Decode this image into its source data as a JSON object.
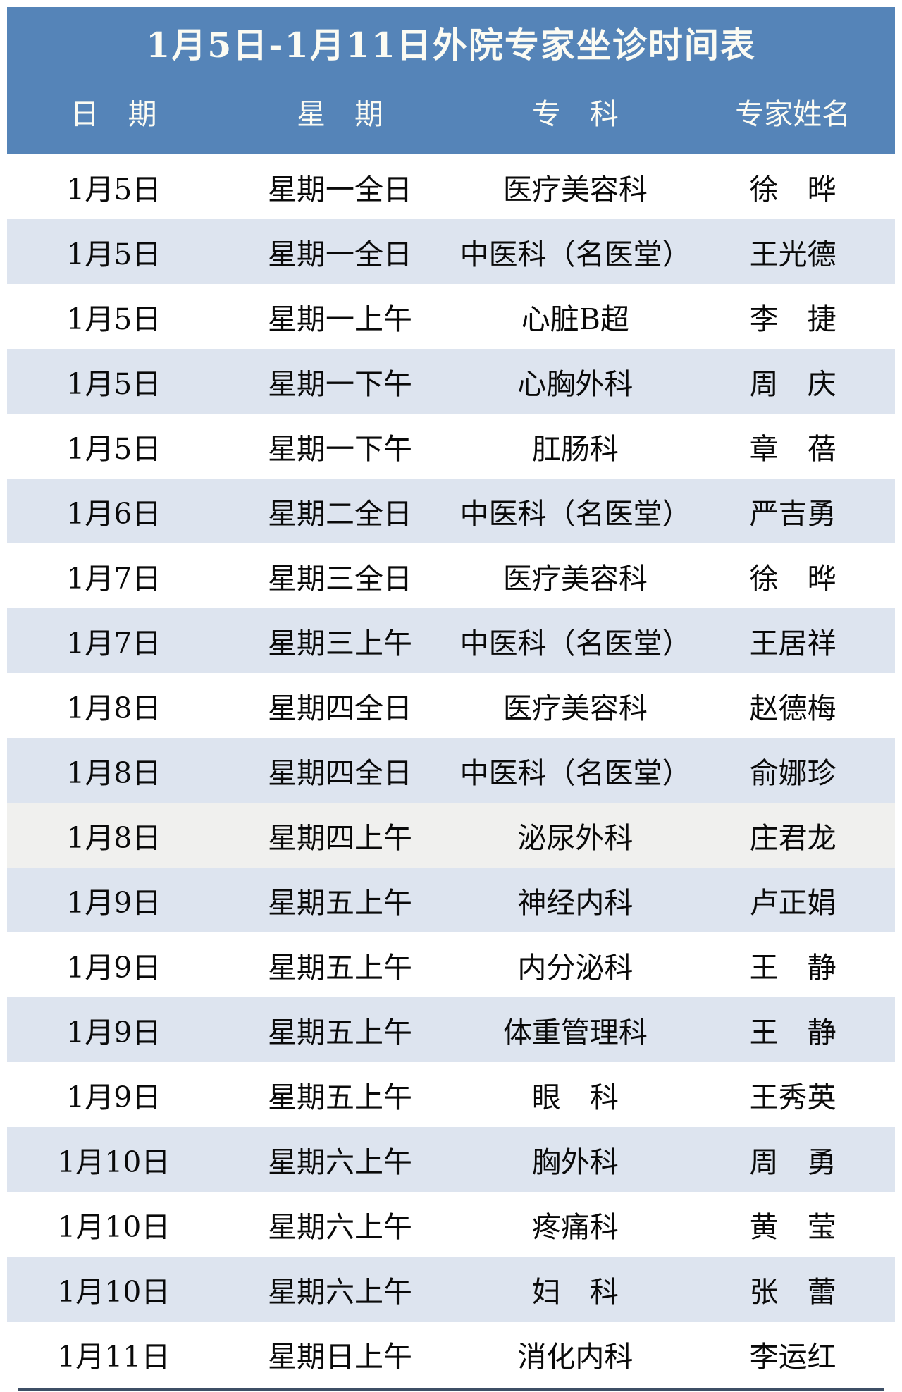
{
  "title": "1月5日-1月11日外院专家坐诊时间表",
  "columns": [
    "日　期",
    "星　期",
    "专　科",
    "专家姓名"
  ],
  "colors": {
    "header_bg": "#5584b8",
    "header_text": "#fbfbf3",
    "row_white": "#ffffff",
    "row_blue": "#dde4ef",
    "row_gray": "#f0f0ee",
    "cell_text": "#0a0a0a",
    "bottom_rule": "#3d4f66"
  },
  "rows": [
    {
      "date": "1月5日",
      "weekday": "星期一全日",
      "department": "医疗美容科",
      "expert": "徐　晔",
      "shade": "white"
    },
    {
      "date": "1月5日",
      "weekday": "星期一全日",
      "department": "中医科（名医堂）",
      "expert": "王光德",
      "shade": "blue"
    },
    {
      "date": "1月5日",
      "weekday": "星期一上午",
      "department": "心脏B超",
      "expert": "李　捷",
      "shade": "white"
    },
    {
      "date": "1月5日",
      "weekday": "星期一下午",
      "department": "心胸外科",
      "expert": "周　庆",
      "shade": "blue"
    },
    {
      "date": "1月5日",
      "weekday": "星期一下午",
      "department": "肛肠科",
      "expert": "章　蓓",
      "shade": "white"
    },
    {
      "date": "1月6日",
      "weekday": "星期二全日",
      "department": "中医科（名医堂）",
      "expert": "严吉勇",
      "shade": "blue"
    },
    {
      "date": "1月7日",
      "weekday": "星期三全日",
      "department": "医疗美容科",
      "expert": "徐　晔",
      "shade": "white"
    },
    {
      "date": "1月7日",
      "weekday": "星期三上午",
      "department": "中医科（名医堂）",
      "expert": "王居祥",
      "shade": "blue"
    },
    {
      "date": "1月8日",
      "weekday": "星期四全日",
      "department": "医疗美容科",
      "expert": "赵德梅",
      "shade": "white"
    },
    {
      "date": "1月8日",
      "weekday": "星期四全日",
      "department": "中医科（名医堂）",
      "expert": "俞娜珍",
      "shade": "blue"
    },
    {
      "date": "1月8日",
      "weekday": "星期四上午",
      "department": "泌尿外科",
      "expert": "庄君龙",
      "shade": "gray"
    },
    {
      "date": "1月9日",
      "weekday": "星期五上午",
      "department": "神经内科",
      "expert": "卢正娟",
      "shade": "blue"
    },
    {
      "date": "1月9日",
      "weekday": "星期五上午",
      "department": "内分泌科",
      "expert": "王　静",
      "shade": "white"
    },
    {
      "date": "1月9日",
      "weekday": "星期五上午",
      "department": "体重管理科",
      "expert": "王　静",
      "shade": "blue"
    },
    {
      "date": "1月9日",
      "weekday": "星期五上午",
      "department": "眼　科",
      "expert": "王秀英",
      "shade": "white"
    },
    {
      "date": "1月10日",
      "weekday": "星期六上午",
      "department": "胸外科",
      "expert": "周　勇",
      "shade": "blue"
    },
    {
      "date": "1月10日",
      "weekday": "星期六上午",
      "department": "疼痛科",
      "expert": "黄　莹",
      "shade": "white"
    },
    {
      "date": "1月10日",
      "weekday": "星期六上午",
      "department": "妇　科",
      "expert": "张　蕾",
      "shade": "blue"
    },
    {
      "date": "1月11日",
      "weekday": "星期日上午",
      "department": "消化内科",
      "expert": "李运红",
      "shade": "white"
    }
  ]
}
